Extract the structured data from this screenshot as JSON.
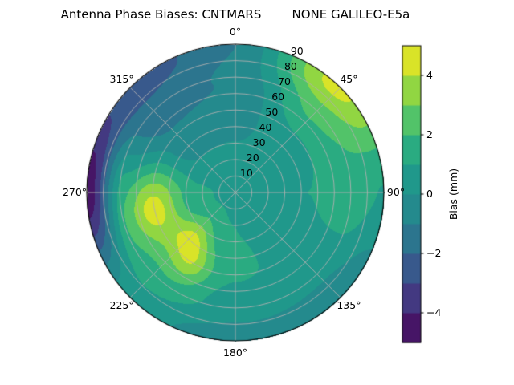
{
  "title": "Antenna Phase Biases: CNTMARS        NONE GALILEO-E5a",
  "chart_data": {
    "type": "heatmap",
    "subtype": "polar-filled-contour",
    "title": "Antenna Phase Biases: CNTMARS        NONE GALILEO-E5a",
    "station": "CNTMARS",
    "antenna": "NONE",
    "signal": "GALILEO-E5a",
    "theta_convention": "azimuth degrees, 0 at top, clockwise",
    "theta_ticks": [
      {
        "label": "0°",
        "deg": 0
      },
      {
        "label": "45°",
        "deg": 45
      },
      {
        "label": "90°",
        "deg": 90
      },
      {
        "label": "135°",
        "deg": 135
      },
      {
        "label": "180°",
        "deg": 180
      },
      {
        "label": "225°",
        "deg": 225
      },
      {
        "label": "270°",
        "deg": 270
      },
      {
        "label": "315°",
        "deg": 315
      }
    ],
    "r_ticks": [
      {
        "label": "10",
        "value": 10
      },
      {
        "label": "20",
        "value": 20
      },
      {
        "label": "30",
        "value": 30
      },
      {
        "label": "40",
        "value": 40
      },
      {
        "label": "50",
        "value": 50
      },
      {
        "label": "60",
        "value": 60
      },
      {
        "label": "70",
        "value": 70
      },
      {
        "label": "80",
        "value": 80
      },
      {
        "label": "90",
        "value": 90
      }
    ],
    "r_max": 90,
    "r_label_angle_deg": 22.5,
    "grid": true,
    "grid_color": "#b0b0b0",
    "colorbar": {
      "label": "Bias (mm)",
      "position": "right",
      "vmin": -5,
      "vmax": 5,
      "level_step_mm": 1,
      "colormap": "viridis",
      "ticks": [
        {
          "label": "4",
          "value": 4
        },
        {
          "label": "2",
          "value": 2
        },
        {
          "label": "0",
          "value": 0
        },
        {
          "label": "−2",
          "value": -2
        },
        {
          "label": "−4",
          "value": -4
        }
      ]
    },
    "colormap_anchors": [
      [
        0.0,
        "#440154"
      ],
      [
        0.1,
        "#482878"
      ],
      [
        0.2,
        "#3e4989"
      ],
      [
        0.3,
        "#31688e"
      ],
      [
        0.4,
        "#26828e"
      ],
      [
        0.5,
        "#21918c"
      ],
      [
        0.6,
        "#1f9e89"
      ],
      [
        0.7,
        "#35b779"
      ],
      [
        0.8,
        "#6ece58"
      ],
      [
        0.9,
        "#b5de2b"
      ],
      [
        1.0,
        "#fde725"
      ]
    ],
    "field": {
      "description": "Bias (mm) sampled on azimuth (deg, clockwise from top) x normalized radius grid; values estimated from contour colors",
      "azimuth_deg": [
        0,
        45,
        90,
        135,
        180,
        225,
        270,
        315
      ],
      "radius_frac": [
        0,
        0.25,
        0.5,
        0.75,
        1.0
      ],
      "values_mm": [
        [
          0.6,
          0.2,
          -0.4,
          -1.0,
          -1.6
        ],
        [
          0.6,
          0.5,
          0.8,
          1.8,
          3.0
        ],
        [
          0.6,
          0.8,
          1.0,
          1.6,
          0.8
        ],
        [
          0.6,
          0.7,
          0.6,
          0.3,
          -0.8
        ],
        [
          0.6,
          1.0,
          1.2,
          0.6,
          -0.6
        ],
        [
          0.6,
          1.3,
          2.0,
          1.6,
          0.4
        ],
        [
          0.6,
          1.2,
          2.4,
          1.0,
          -4.6
        ],
        [
          0.6,
          0.2,
          -0.6,
          -1.6,
          -2.6
        ]
      ]
    },
    "features": [
      {
        "az_deg": 258,
        "f": 0.6,
        "amp_mm": 2.4,
        "sigma_az_deg": 14,
        "sigma_f": 0.12
      },
      {
        "az_deg": 225,
        "f": 0.42,
        "amp_mm": 2.3,
        "sigma_az_deg": 13,
        "sigma_f": 0.11
      },
      {
        "az_deg": 212,
        "f": 0.57,
        "amp_mm": 1.6,
        "sigma_az_deg": 10,
        "sigma_f": 0.1
      },
      {
        "az_deg": 34,
        "f": 0.97,
        "amp_mm": 1.4,
        "sigma_az_deg": 26,
        "sigma_f": 0.15
      }
    ]
  }
}
